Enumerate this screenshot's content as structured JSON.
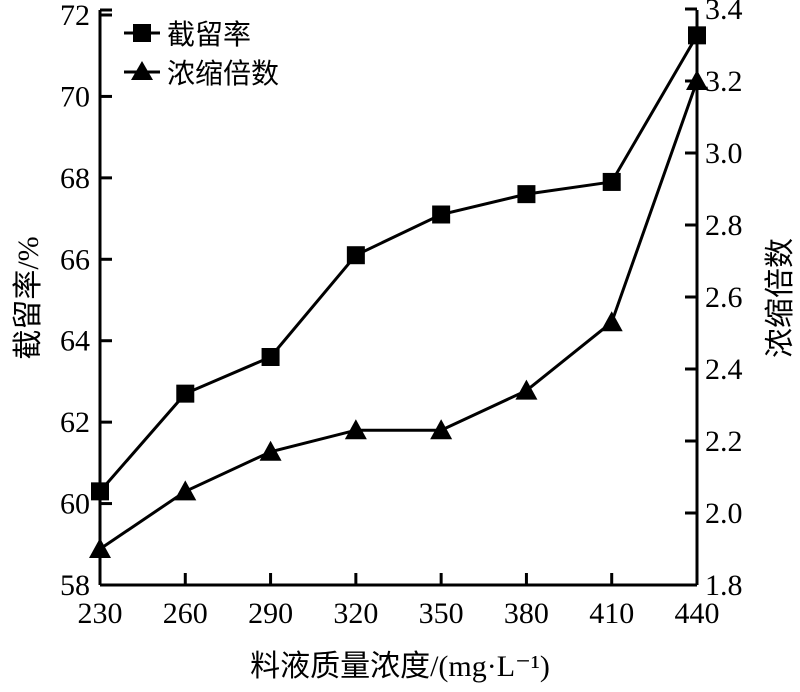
{
  "chart_data": {
    "type": "line",
    "x": [
      230,
      260,
      290,
      320,
      350,
      380,
      410,
      440
    ],
    "xlabel": "料液质量浓度/(mg·L⁻¹)",
    "ylabel": "截留率/%",
    "ylabel_right": "浓缩倍数",
    "xlim": [
      230,
      440
    ],
    "ylim": [
      58,
      72
    ],
    "ylim_right": [
      1.8,
      3.4
    ],
    "x_ticks": [
      "230",
      "260",
      "290",
      "320",
      "350",
      "380",
      "410",
      "440"
    ],
    "y_ticks": [
      "58",
      "60",
      "62",
      "64",
      "66",
      "68",
      "70",
      "72"
    ],
    "y_ticks_right": [
      "1.8",
      "2.0",
      "2.2",
      "2.4",
      "2.6",
      "2.8",
      "3.0",
      "3.2",
      "3.4"
    ],
    "grid": false,
    "legend_position": "top-left",
    "series": [
      {
        "name": "截留率",
        "axis": "left",
        "marker": "square",
        "values": [
          60.3,
          62.7,
          63.6,
          66.1,
          67.1,
          67.6,
          67.9,
          71.5
        ]
      },
      {
        "name": "浓缩倍数",
        "axis": "right",
        "marker": "triangle",
        "values": [
          1.9,
          2.06,
          2.17,
          2.23,
          2.23,
          2.34,
          2.53,
          3.2
        ]
      }
    ]
  }
}
